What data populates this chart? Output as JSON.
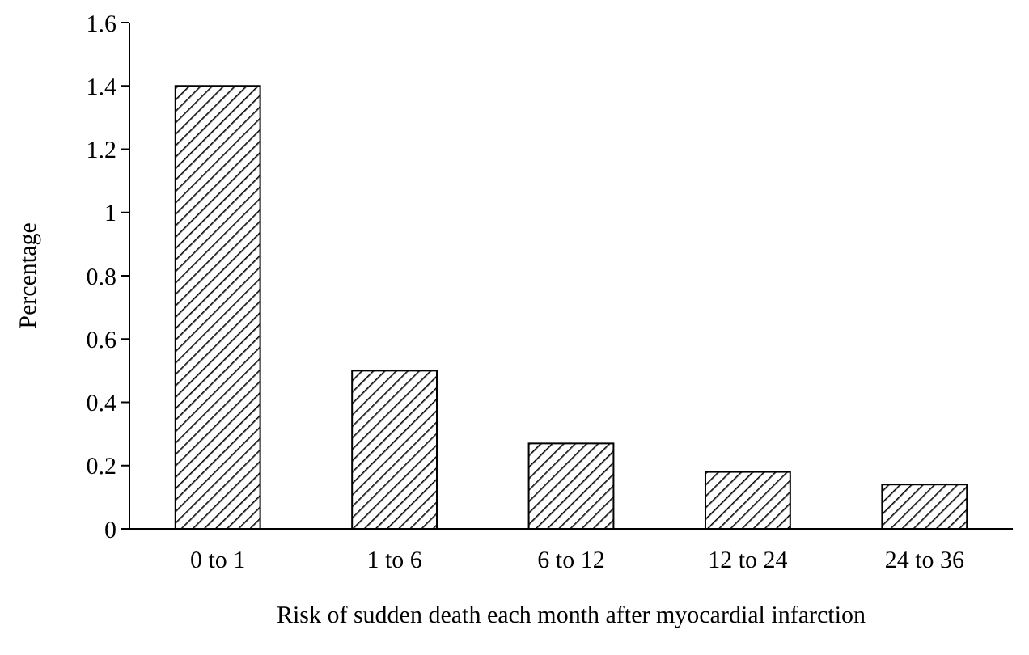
{
  "chart_data": {
    "type": "bar",
    "xlabel": "Risk of sudden death each month after myocardial infarction",
    "ylabel": "Percentage",
    "categories": [
      "0 to 1",
      "1 to 6",
      "6 to 12",
      "12 to 24",
      "24 to 36"
    ],
    "values": [
      1.4,
      0.5,
      0.27,
      0.18,
      0.14
    ],
    "color": "#000000",
    "ylim": [
      0,
      1.6
    ],
    "yticks": [
      0,
      0.2,
      0.4,
      0.6,
      0.8,
      1,
      1.2,
      1.4,
      1.6
    ],
    "grid": false
  }
}
